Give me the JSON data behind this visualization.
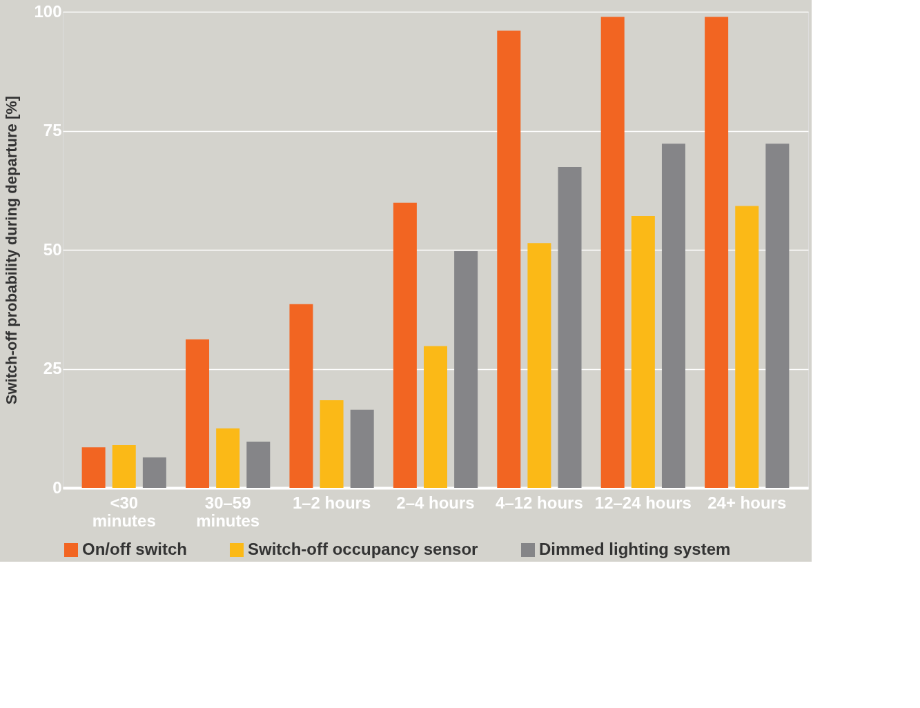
{
  "chart_data": {
    "type": "bar",
    "ylabel": "Switch-off probability during departure [%]",
    "categories": [
      "<30\nminutes",
      "30–59\nminutes",
      "1–2 hours",
      "2–4 hours",
      "4–12 hours",
      "12–24 hours",
      "24+ hours"
    ],
    "series": [
      {
        "name": "On/off switch",
        "color": "#f26522",
        "values": [
          8.5,
          31.2,
          38.6,
          59.9,
          96,
          98.9,
          98.9
        ]
      },
      {
        "name": "Switch-off occupancy sensor",
        "color": "#fbb917",
        "values": [
          9,
          12.5,
          18.4,
          29.8,
          51.4,
          57.1,
          59.2
        ]
      },
      {
        "name": "Dimmed lighting system",
        "color": "#858588",
        "values": [
          6.4,
          9.7,
          16.4,
          49.7,
          67.4,
          72.3,
          72.3
        ]
      }
    ],
    "ylim": [
      0,
      100
    ],
    "yticks": [
      0,
      25,
      50,
      75,
      100
    ],
    "grid": "y",
    "legend": "bottom"
  }
}
